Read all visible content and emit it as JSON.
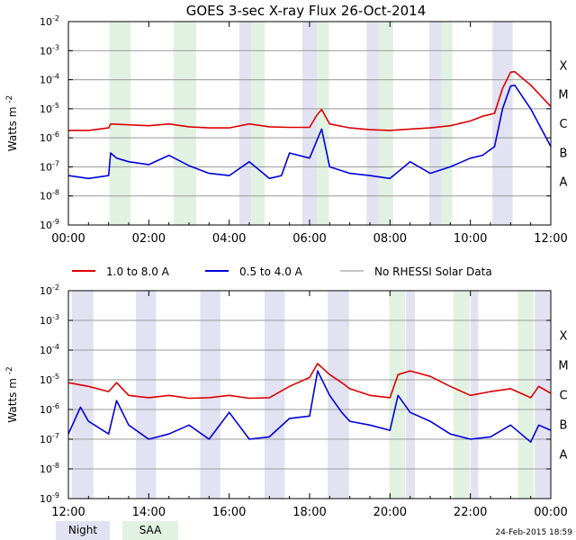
{
  "header": {
    "title": "GOES 3-sec X-ray Flux   26-Oct-2014",
    "timestamp": "24-Feb-2015 18:59"
  },
  "legend": {
    "items": [
      {
        "label": "1.0 to 8.0 A",
        "color": "#dd0000"
      },
      {
        "label": "0.5 to 4.0 A",
        "color": "#0000dd"
      },
      {
        "label": "No RHESSI Solar Data",
        "color": "#888888"
      }
    ],
    "bottom": [
      {
        "label": "Night",
        "color": "#e2e2f2"
      },
      {
        "label": "SAA",
        "color": "#e2f2e2"
      }
    ]
  },
  "chart_data": [
    {
      "type": "line",
      "ylabel": "Watts m",
      "ylabel_superscript": "-2",
      "yscale": "log",
      "ylim_exponents": [
        -9,
        -2
      ],
      "ytick_exponents": [
        -9,
        -8,
        -7,
        -6,
        -5,
        -4,
        -3,
        -2
      ],
      "class_labels": [
        {
          "label": "A",
          "exp": -8
        },
        {
          "label": "B",
          "exp": -7
        },
        {
          "label": "C",
          "exp": -6
        },
        {
          "label": "M",
          "exp": -5
        },
        {
          "label": "X",
          "exp": -4
        }
      ],
      "xlim_hours": [
        0,
        12
      ],
      "xtick_labels": [
        "00:00",
        "02:00",
        "04:00",
        "06:00",
        "08:00",
        "10:00",
        "12:00"
      ],
      "grid": "horizontal",
      "night_hours": [
        [
          4.25,
          4.55
        ],
        [
          5.82,
          6.18
        ],
        [
          7.42,
          7.72
        ],
        [
          8.98,
          9.28
        ],
        [
          10.55,
          11.05
        ]
      ],
      "saa_hours": [
        [
          1.02,
          1.55
        ],
        [
          2.62,
          3.18
        ],
        [
          4.55,
          4.88
        ],
        [
          6.18,
          6.48
        ],
        [
          7.72,
          8.08
        ],
        [
          9.28,
          9.55
        ]
      ],
      "series": [
        {
          "name": "1.0 to 8.0 A",
          "color": "#dd0000",
          "t": [
            0,
            0.5,
            1.0,
            1.05,
            1.5,
            2.0,
            2.5,
            3.0,
            3.5,
            4.0,
            4.5,
            5.0,
            5.5,
            6.0,
            6.18,
            6.3,
            6.5,
            7.0,
            7.5,
            8.0,
            8.5,
            9.0,
            9.5,
            10.0,
            10.3,
            10.6,
            10.8,
            11.0,
            11.1,
            11.5,
            12.0
          ],
          "values": [
            1.8e-06,
            1.8e-06,
            2.2e-06,
            3e-06,
            2.8e-06,
            2.6e-06,
            3e-06,
            2.4e-06,
            2.2e-06,
            2.2e-06,
            3e-06,
            2.4e-06,
            2.3e-06,
            2.3e-06,
            6e-06,
            9.5e-06,
            3e-06,
            2.2e-06,
            1.9e-06,
            1.8e-06,
            2e-06,
            2.2e-06,
            2.6e-06,
            3.8e-06,
            5.5e-06,
            7e-06,
            5e-05,
            0.00018,
            0.00019,
            6.5e-05,
            1.2e-05
          ]
        },
        {
          "name": "0.5 to 4.0 A",
          "color": "#0000dd",
          "t": [
            0,
            0.5,
            1.0,
            1.05,
            1.2,
            1.5,
            2.0,
            2.5,
            3.0,
            3.5,
            4.0,
            4.5,
            5.0,
            5.3,
            5.5,
            6.0,
            6.18,
            6.3,
            6.5,
            7.0,
            7.5,
            8.0,
            8.5,
            9.0,
            9.5,
            10.0,
            10.3,
            10.6,
            10.8,
            11.0,
            11.1,
            11.5,
            12.0
          ],
          "values": [
            5e-08,
            4e-08,
            5e-08,
            3e-07,
            2e-07,
            1.5e-07,
            1.2e-07,
            2.5e-07,
            1.1e-07,
            6e-08,
            5e-08,
            1.5e-07,
            4e-08,
            5e-08,
            3e-07,
            2e-07,
            8e-07,
            2e-06,
            1e-07,
            6e-08,
            5e-08,
            4e-08,
            1.5e-07,
            6e-08,
            1e-07,
            2e-07,
            2.5e-07,
            5e-07,
            1e-05,
            6e-05,
            6.5e-05,
            1e-05,
            5e-07
          ]
        }
      ]
    },
    {
      "type": "line",
      "ylabel": "Watts m",
      "ylabel_superscript": "-2",
      "yscale": "log",
      "ylim_exponents": [
        -9,
        -2
      ],
      "ytick_exponents": [
        -9,
        -8,
        -7,
        -6,
        -5,
        -4,
        -3,
        -2
      ],
      "class_labels": [
        {
          "label": "A",
          "exp": -8
        },
        {
          "label": "B",
          "exp": -7
        },
        {
          "label": "C",
          "exp": -6
        },
        {
          "label": "M",
          "exp": -5
        },
        {
          "label": "X",
          "exp": -4
        }
      ],
      "xlim_hours": [
        12,
        24
      ],
      "xtick_labels": [
        "12:00",
        "14:00",
        "16:00",
        "18:00",
        "20:00",
        "22:00",
        "00:00"
      ],
      "grid": "horizontal",
      "night_hours": [
        [
          12.08,
          12.62
        ],
        [
          13.68,
          14.18
        ],
        [
          15.28,
          15.78
        ],
        [
          16.88,
          17.38
        ],
        [
          18.45,
          18.98
        ],
        [
          20.4,
          20.62
        ],
        [
          22.0,
          22.2
        ],
        [
          23.6,
          23.98
        ]
      ],
      "saa_hours": [
        [
          19.98,
          20.38
        ],
        [
          21.58,
          21.98
        ],
        [
          23.18,
          23.58
        ]
      ],
      "series": [
        {
          "name": "1.0 to 8.0 A",
          "color": "#dd0000",
          "t": [
            12.0,
            12.5,
            13.0,
            13.2,
            13.5,
            14.0,
            14.5,
            15.0,
            15.5,
            16.0,
            16.5,
            17.0,
            17.5,
            18.0,
            18.2,
            18.5,
            18.8,
            19.0,
            19.5,
            20.0,
            20.2,
            20.5,
            21.0,
            21.5,
            22.0,
            22.5,
            23.0,
            23.5,
            23.7,
            24.0
          ],
          "values": [
            8e-06,
            6e-06,
            4e-06,
            8e-06,
            3e-06,
            2.5e-06,
            3e-06,
            2.4e-06,
            2.5e-06,
            3e-06,
            2.4e-06,
            2.5e-06,
            6e-06,
            1.2e-05,
            3.5e-05,
            1.5e-05,
            8e-06,
            5e-06,
            3e-06,
            2.5e-06,
            1.5e-05,
            2e-05,
            1.3e-05,
            6e-06,
            3e-06,
            4e-06,
            5e-06,
            2.5e-06,
            6e-06,
            3.5e-06
          ]
        },
        {
          "name": "0.5 to 4.0 A",
          "color": "#0000dd",
          "t": [
            12.0,
            12.3,
            12.5,
            13.0,
            13.2,
            13.5,
            14.0,
            14.5,
            15.0,
            15.5,
            16.0,
            16.5,
            17.0,
            17.5,
            18.0,
            18.2,
            18.5,
            18.8,
            19.0,
            19.5,
            20.0,
            20.2,
            20.5,
            21.0,
            21.5,
            22.0,
            22.5,
            23.0,
            23.5,
            23.7,
            24.0
          ],
          "values": [
            1.5e-07,
            1.2e-06,
            4e-07,
            1.5e-07,
            2e-06,
            3e-07,
            1e-07,
            1.5e-07,
            3e-07,
            1e-07,
            8e-07,
            1e-07,
            1.2e-07,
            5e-07,
            6e-07,
            2e-05,
            3e-06,
            8e-07,
            4e-07,
            3e-07,
            2e-07,
            3e-06,
            8e-07,
            4e-07,
            1.5e-07,
            1e-07,
            1.2e-07,
            3e-07,
            8e-08,
            3e-07,
            2e-07
          ]
        }
      ]
    }
  ]
}
